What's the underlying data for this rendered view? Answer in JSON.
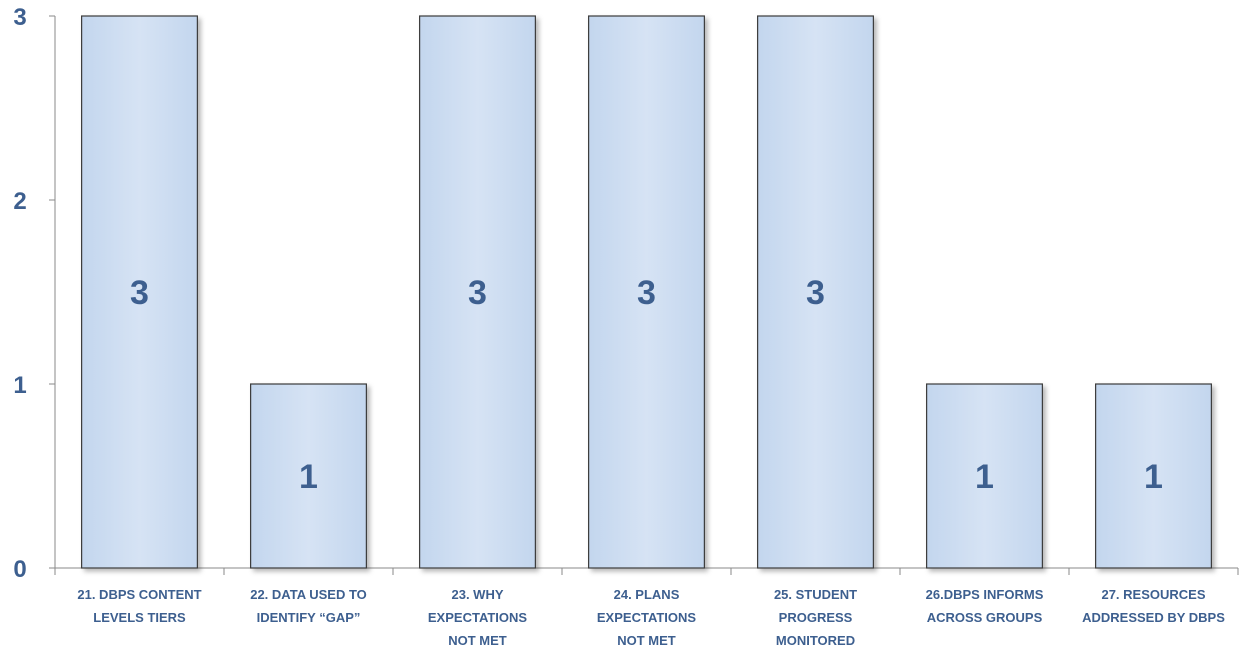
{
  "chart_data": {
    "type": "bar",
    "title": "",
    "xlabel": "",
    "ylabel": "",
    "ylim": [
      0,
      3
    ],
    "yticks": [
      "0",
      "1",
      "2",
      "3"
    ],
    "grid": false,
    "legend": "none",
    "categories": [
      [
        "21.  DBPS CONTENT",
        "LEVELS TIERS"
      ],
      [
        "22. DATA USED TO",
        "IDENTIFY “GAP”"
      ],
      [
        "23. WHY",
        "EXPECTATIONS",
        "NOT MET"
      ],
      [
        "24. PLANS",
        "EXPECTATIONS",
        "NOT MET"
      ],
      [
        "25. STUDENT",
        "PROGRESS",
        "MONITORED"
      ],
      [
        "26.DBPS INFORMS",
        "ACROSS GROUPS"
      ],
      [
        "27. RESOURCES",
        "ADDRESSED BY DBPS"
      ]
    ],
    "values": [
      3,
      1,
      3,
      3,
      3,
      1,
      1
    ],
    "data_labels": [
      "3",
      "1",
      "3",
      "3",
      "3",
      "1",
      "1"
    ],
    "colors": {
      "bar_fill_top": "#d6e3f4",
      "bar_fill_bottom": "#c3d6ee",
      "bar_stroke": "#3b3b3b",
      "axis": "#8a8a8a",
      "text": "#3d5f8f"
    }
  }
}
